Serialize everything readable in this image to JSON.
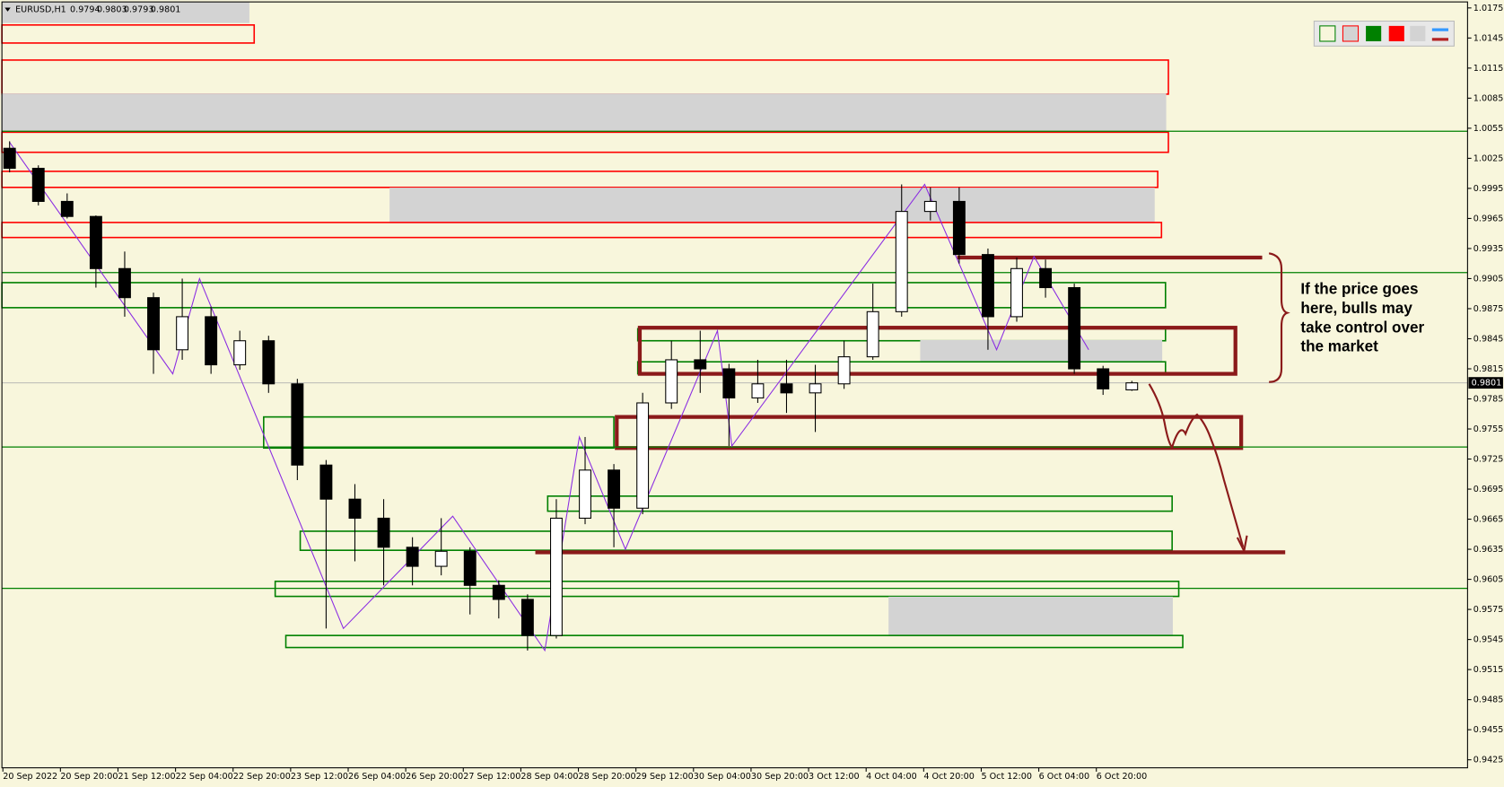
{
  "chart_data": {
    "type": "candlestick",
    "symbol": "EURUSD,H1",
    "up_color": "#ffffff",
    "down_color": "#000000",
    "open": [
      1.0035,
      1.0015,
      0.9982,
      0.9967,
      0.9915,
      0.9886,
      0.9834,
      0.9867,
      0.9819,
      0.9843,
      0.98,
      0.9719,
      0.9685,
      0.9666,
      0.9637,
      0.9618,
      0.9633,
      0.9599,
      0.9585,
      0.9549,
      0.9666,
      0.9714,
      0.9676,
      0.9781,
      0.9824,
      0.9815,
      0.9786,
      0.98,
      0.9791,
      0.98,
      0.9827,
      0.9872,
      0.9972,
      0.9982,
      0.9929,
      0.9867,
      0.9915,
      0.9896,
      0.9815,
      0.9794
    ],
    "high": [
      1.0042,
      1.0018,
      0.999,
      0.9968,
      0.9932,
      0.9891,
      0.9905,
      0.9877,
      0.9853,
      0.9848,
      0.9805,
      0.9724,
      0.97,
      0.9685,
      0.9647,
      0.9666,
      0.9637,
      0.9604,
      0.959,
      0.9685,
      0.9747,
      0.972,
      0.9791,
      0.9843,
      0.9853,
      0.982,
      0.9824,
      0.9824,
      0.9819,
      0.9843,
      0.99,
      0.9999,
      0.9996,
      0.9996,
      0.9935,
      0.9926,
      0.9924,
      0.99,
      0.9818,
      0.9803
    ],
    "low": [
      1.0011,
      0.9978,
      0.9965,
      0.9896,
      0.9867,
      0.981,
      0.9824,
      0.981,
      0.9814,
      0.9791,
      0.9704,
      0.9556,
      0.9623,
      0.9599,
      0.9599,
      0.9609,
      0.957,
      0.9566,
      0.9534,
      0.9546,
      0.966,
      0.9637,
      0.967,
      0.9775,
      0.9791,
      0.9738,
      0.9781,
      0.9771,
      0.9752,
      0.9795,
      0.9824,
      0.9867,
      0.9963,
      0.992,
      0.9834,
      0.9862,
      0.9886,
      0.981,
      0.9789,
      0.9793
    ],
    "close": [
      1.0015,
      0.9982,
      0.9967,
      0.9915,
      0.9886,
      0.9834,
      0.9867,
      0.9819,
      0.9843,
      0.98,
      0.9719,
      0.9685,
      0.9666,
      0.9637,
      0.9618,
      0.9633,
      0.9599,
      0.9585,
      0.9549,
      0.9666,
      0.9714,
      0.9676,
      0.9781,
      0.9824,
      0.9815,
      0.9786,
      0.98,
      0.9791,
      0.98,
      0.9827,
      0.9872,
      0.9972,
      0.9982,
      0.9929,
      0.9867,
      0.9915,
      0.9896,
      0.9815,
      0.9795,
      0.9801
    ],
    "x_labels": [
      "20 Sep 2022",
      "20 Sep 20:00",
      "21 Sep 12:00",
      "22 Sep 04:00",
      "22 Sep 20:00",
      "23 Sep 12:00",
      "26 Sep 04:00",
      "26 Sep 20:00",
      "27 Sep 12:00",
      "28 Sep 04:00",
      "28 Sep 20:00",
      "29 Sep 12:00",
      "30 Sep 04:00",
      "30 Sep 20:00",
      "3 Oct 12:00",
      "4 Oct 04:00",
      "4 Oct 20:00",
      "5 Oct 12:00",
      "6 Oct 04:00",
      "6 Oct 20:00"
    ],
    "ylim": [
      0.9417,
      1.0181
    ],
    "yticks": [
      1.0175,
      1.0145,
      1.0115,
      1.0085,
      1.0055,
      1.0025,
      0.9995,
      0.9965,
      0.9935,
      0.9905,
      0.9875,
      0.9845,
      0.9815,
      0.9785,
      0.9755,
      0.9725,
      0.9695,
      0.9665,
      0.9635,
      0.9605,
      0.9575,
      0.9545,
      0.9515,
      0.9485,
      0.9455,
      0.9425
    ],
    "zigzag_color": "#8a2be2",
    "zigzag_x": [
      0,
      5.67,
      6.6,
      11.6,
      15.4,
      18.6,
      19.8,
      21.4,
      24.6,
      25.1,
      31.8,
      34.3,
      35.6,
      37.5
    ],
    "zigzag_y": [
      1.0041,
      0.981,
      0.9905,
      0.9556,
      0.9668,
      0.9534,
      0.9747,
      0.9635,
      0.9853,
      0.9738,
      0.9999,
      0.9834,
      0.9927,
      0.9834
    ],
    "zones": [
      {
        "color": "#ff0000",
        "fill": "none",
        "top": 1.0158,
        "bottom": 1.014,
        "from": -0.27,
        "to": 8.5
      },
      {
        "color": "#ff0000",
        "fill": "none",
        "top": 1.0123,
        "bottom": 1.0089,
        "from": -0.27,
        "to": 40.27
      },
      {
        "color": "#d3d3d3",
        "fill": "#d3d3d3",
        "top": 1.0089,
        "bottom": 1.0052,
        "from": -0.27,
        "to": 40.17
      },
      {
        "color": "#ff0000",
        "fill": "none",
        "top": 1.0051,
        "bottom": 1.0031,
        "from": -0.27,
        "to": 40.27
      },
      {
        "color": "#ff0000",
        "fill": "none",
        "top": 1.0012,
        "bottom": 0.9996,
        "from": -0.27,
        "to": 39.9
      },
      {
        "color": "#d3d3d3",
        "fill": "#d3d3d3",
        "top": 0.9995,
        "bottom": 0.9961,
        "from": 13.23,
        "to": 39.77
      },
      {
        "color": "#ff0000",
        "fill": "none",
        "top": 0.9961,
        "bottom": 0.9946,
        "from": -0.27,
        "to": 40.03
      },
      {
        "color": "#008000",
        "fill": "none",
        "top": 0.9901,
        "bottom": 0.9876,
        "from": -0.27,
        "to": 40.17
      },
      {
        "color": "#008000",
        "fill": "none",
        "top": 0.9855,
        "bottom": 0.9843,
        "from": 21.83,
        "to": 40.17
      },
      {
        "color": "#d3d3d3",
        "fill": "#d3d3d3",
        "top": 0.9843,
        "bottom": 0.9822,
        "from": 31.67,
        "to": 40.03
      },
      {
        "color": "#008000",
        "fill": "none",
        "top": 0.9822,
        "bottom": 0.981,
        "from": 21.83,
        "to": 40.17
      },
      {
        "color": "#008000",
        "fill": "none",
        "top": 0.9767,
        "bottom": 0.9736,
        "from": 8.83,
        "to": 21
      },
      {
        "color": "#008000",
        "fill": "none",
        "top": 0.9688,
        "bottom": 0.9673,
        "from": 18.7,
        "to": 40.4
      },
      {
        "color": "#008000",
        "fill": "none",
        "top": 0.9653,
        "bottom": 0.9634,
        "from": 10.1,
        "to": 40.4
      },
      {
        "color": "#008000",
        "fill": "none",
        "top": 0.9603,
        "bottom": 0.9588,
        "from": 9.23,
        "to": 40.63
      },
      {
        "color": "#d3d3d3",
        "fill": "#d3d3d3",
        "top": 0.9587,
        "bottom": 0.9549,
        "from": 30.57,
        "to": 40.4
      },
      {
        "color": "#008000",
        "fill": "none",
        "top": 0.9549,
        "bottom": 0.9537,
        "from": 9.6,
        "to": 40.77
      },
      {
        "color": "#8b1a1a",
        "fill": "none",
        "top": 0.9856,
        "bottom": 0.981,
        "from": 21.9,
        "to": 42.6
      },
      {
        "color": "#8b1a1a",
        "fill": "none",
        "top": 0.9767,
        "bottom": 0.9736,
        "from": 21.1,
        "to": 42.8
      }
    ],
    "levels": [
      {
        "color": "#008000",
        "price": 1.0052
      },
      {
        "color": "#008000",
        "price": 0.9911
      },
      {
        "color": "#008000",
        "price": 0.9737
      },
      {
        "color": "#008000",
        "price": 0.9596
      }
    ],
    "trendlines": [
      {
        "color": "#8b1a1a",
        "price": 0.9926,
        "from": 32.93,
        "to": 43.53
      },
      {
        "color": "#8b1a1a",
        "price": 0.9632,
        "from": 18.27,
        "to": 44.33
      }
    ],
    "annotation": [
      "If the price goes",
      "here, bulls may",
      "take control over",
      "the market"
    ]
  }
}
